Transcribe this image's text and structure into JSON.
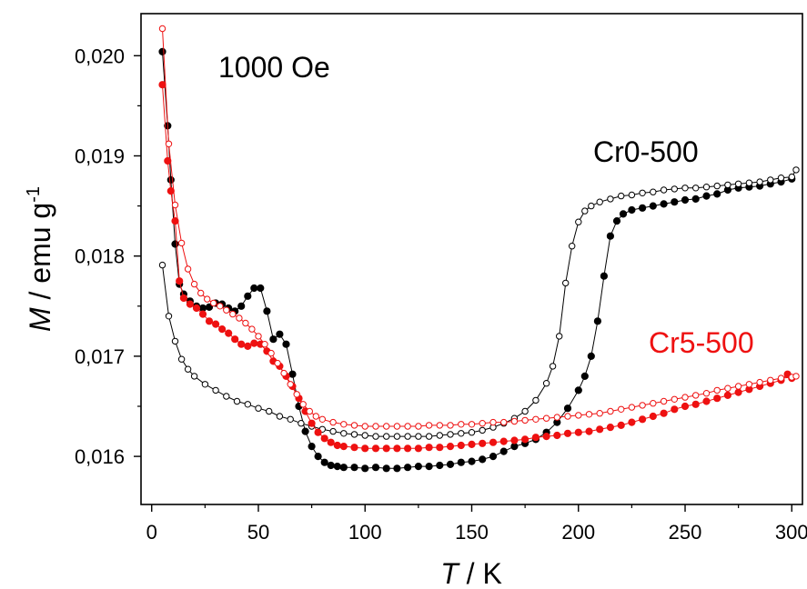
{
  "chart_data": {
    "type": "scatter",
    "title": "",
    "annotation": "1000 Oe",
    "xlabel": {
      "italic": "T",
      "rest": " / K"
    },
    "ylabel": {
      "italic": "M",
      "rest": " / emu g",
      "sup": "-1"
    },
    "xlim": [
      -5,
      305
    ],
    "ylim": [
      0.01552,
      0.02042
    ],
    "xticks": [
      0,
      50,
      100,
      150,
      200,
      250,
      300
    ],
    "xtick_labels": [
      "0",
      "50",
      "100",
      "150",
      "200",
      "250",
      "300"
    ],
    "yticks": [
      0.016,
      0.017,
      0.018,
      0.019,
      0.02
    ],
    "ytick_labels": [
      "0,016",
      "0,017",
      "0,018",
      "0,019",
      "0,020"
    ],
    "grid": false,
    "legend": "inline labels",
    "series_labels": [
      {
        "text": "Cr0-500",
        "color": "#000000"
      },
      {
        "text": "Cr5-500",
        "color": "#ee1111"
      }
    ],
    "series": [
      {
        "color": "#000000",
        "fill": "filled",
        "points": [
          [
            5,
            0.02004
          ],
          [
            7.5,
            0.0193
          ],
          [
            9,
            0.01876
          ],
          [
            11,
            0.01812
          ],
          [
            13,
            0.01772
          ],
          [
            15,
            0.01762
          ],
          [
            18,
            0.01755
          ],
          [
            21,
            0.0175
          ],
          [
            24,
            0.01748
          ],
          [
            27,
            0.01749
          ],
          [
            30,
            0.01753
          ],
          [
            33,
            0.01752
          ],
          [
            36,
            0.01748
          ],
          [
            39,
            0.01745
          ],
          [
            42,
            0.0175
          ],
          [
            45,
            0.0176
          ],
          [
            48,
            0.01768
          ],
          [
            51,
            0.01768
          ],
          [
            54,
            0.01745
          ],
          [
            57,
            0.01717
          ],
          [
            60,
            0.01722
          ],
          [
            63,
            0.01712
          ],
          [
            66,
            0.01682
          ],
          [
            69,
            0.0165
          ],
          [
            72,
            0.01625
          ],
          [
            75,
            0.0161
          ],
          [
            78,
            0.016
          ],
          [
            81,
            0.01594
          ],
          [
            84,
            0.01591
          ],
          [
            87,
            0.0159
          ],
          [
            90,
            0.01589
          ],
          [
            95,
            0.01589
          ],
          [
            100,
            0.01588
          ],
          [
            105,
            0.01589
          ],
          [
            110,
            0.01588
          ],
          [
            115,
            0.01588
          ],
          [
            120,
            0.01589
          ],
          [
            125,
            0.0159
          ],
          [
            130,
            0.0159
          ],
          [
            135,
            0.01591
          ],
          [
            140,
            0.01592
          ],
          [
            145,
            0.01594
          ],
          [
            150,
            0.01595
          ],
          [
            155,
            0.01597
          ],
          [
            160,
            0.016
          ],
          [
            165,
            0.01605
          ],
          [
            170,
            0.0161
          ],
          [
            175,
            0.01613
          ],
          [
            180,
            0.01617
          ],
          [
            185,
            0.01624
          ],
          [
            190,
            0.01634
          ],
          [
            195,
            0.01648
          ],
          [
            200,
            0.01666
          ],
          [
            203,
            0.0168
          ],
          [
            206,
            0.017
          ],
          [
            209,
            0.01735
          ],
          [
            212,
            0.0178
          ],
          [
            215,
            0.0182
          ],
          [
            218,
            0.01835
          ],
          [
            221,
            0.01842
          ],
          [
            225,
            0.01846
          ],
          [
            230,
            0.01848
          ],
          [
            235,
            0.0185
          ],
          [
            240,
            0.01852
          ],
          [
            245,
            0.01854
          ],
          [
            250,
            0.01856
          ],
          [
            255,
            0.01857
          ],
          [
            260,
            0.0186
          ],
          [
            265,
            0.01862
          ],
          [
            270,
            0.01866
          ],
          [
            275,
            0.01868
          ],
          [
            280,
            0.01869
          ],
          [
            285,
            0.0187
          ],
          [
            290,
            0.01872
          ],
          [
            295,
            0.01874
          ],
          [
            300,
            0.01877
          ]
        ]
      },
      {
        "color": "#000000",
        "fill": "open",
        "points": [
          [
            5,
            0.01791
          ],
          [
            8,
            0.0174
          ],
          [
            11,
            0.01715
          ],
          [
            14,
            0.01697
          ],
          [
            17,
            0.01687
          ],
          [
            20,
            0.0168
          ],
          [
            25,
            0.01672
          ],
          [
            30,
            0.01666
          ],
          [
            35,
            0.0166
          ],
          [
            40,
            0.01655
          ],
          [
            45,
            0.01652
          ],
          [
            50,
            0.01648
          ],
          [
            55,
            0.01645
          ],
          [
            60,
            0.0164
          ],
          [
            65,
            0.01637
          ],
          [
            70,
            0.01633
          ],
          [
            75,
            0.0163
          ],
          [
            80,
            0.01627
          ],
          [
            85,
            0.01625
          ],
          [
            90,
            0.01623
          ],
          [
            95,
            0.01622
          ],
          [
            100,
            0.01621
          ],
          [
            105,
            0.0162
          ],
          [
            110,
            0.0162
          ],
          [
            115,
            0.0162
          ],
          [
            120,
            0.0162
          ],
          [
            125,
            0.0162
          ],
          [
            130,
            0.0162
          ],
          [
            135,
            0.01621
          ],
          [
            140,
            0.01622
          ],
          [
            145,
            0.01623
          ],
          [
            150,
            0.01624
          ],
          [
            155,
            0.01626
          ],
          [
            160,
            0.01629
          ],
          [
            165,
            0.01633
          ],
          [
            170,
            0.01638
          ],
          [
            175,
            0.01645
          ],
          [
            180,
            0.01656
          ],
          [
            185,
            0.01673
          ],
          [
            188,
            0.0169
          ],
          [
            191,
            0.0172
          ],
          [
            194,
            0.01773
          ],
          [
            197,
            0.0181
          ],
          [
            200,
            0.01834
          ],
          [
            203,
            0.01845
          ],
          [
            206,
            0.0185
          ],
          [
            210,
            0.01854
          ],
          [
            215,
            0.01857
          ],
          [
            220,
            0.0186
          ],
          [
            225,
            0.01861
          ],
          [
            230,
            0.01863
          ],
          [
            235,
            0.01864
          ],
          [
            240,
            0.01866
          ],
          [
            245,
            0.01867
          ],
          [
            250,
            0.01868
          ],
          [
            255,
            0.01868
          ],
          [
            260,
            0.01869
          ],
          [
            265,
            0.0187
          ],
          [
            270,
            0.01871
          ],
          [
            275,
            0.01872
          ],
          [
            280,
            0.01873
          ],
          [
            285,
            0.01874
          ],
          [
            290,
            0.01876
          ],
          [
            295,
            0.01878
          ],
          [
            300,
            0.01879
          ],
          [
            302,
            0.01886
          ]
        ]
      },
      {
        "color": "#ee1111",
        "fill": "filled",
        "points": [
          [
            5,
            0.01971
          ],
          [
            7.5,
            0.01895
          ],
          [
            9,
            0.01865
          ],
          [
            11,
            0.01835
          ],
          [
            13,
            0.01775
          ],
          [
            15,
            0.01758
          ],
          [
            18,
            0.01752
          ],
          [
            21,
            0.01748
          ],
          [
            24,
            0.01742
          ],
          [
            27,
            0.01735
          ],
          [
            30,
            0.01732
          ],
          [
            33,
            0.01727
          ],
          [
            36,
            0.01723
          ],
          [
            39,
            0.01717
          ],
          [
            42,
            0.01712
          ],
          [
            45,
            0.0171
          ],
          [
            48,
            0.01713
          ],
          [
            51,
            0.01712
          ],
          [
            54,
            0.01705
          ],
          [
            57,
            0.01695
          ],
          [
            60,
            0.0169
          ],
          [
            63,
            0.0168
          ],
          [
            66,
            0.0167
          ],
          [
            69,
            0.01658
          ],
          [
            72,
            0.01645
          ],
          [
            75,
            0.01633
          ],
          [
            78,
            0.01624
          ],
          [
            81,
            0.01618
          ],
          [
            84,
            0.01614
          ],
          [
            87,
            0.01611
          ],
          [
            90,
            0.0161
          ],
          [
            95,
            0.01609
          ],
          [
            100,
            0.01608
          ],
          [
            105,
            0.01608
          ],
          [
            110,
            0.01608
          ],
          [
            115,
            0.01608
          ],
          [
            120,
            0.01608
          ],
          [
            125,
            0.01608
          ],
          [
            130,
            0.01609
          ],
          [
            135,
            0.01609
          ],
          [
            140,
            0.0161
          ],
          [
            145,
            0.01611
          ],
          [
            150,
            0.01612
          ],
          [
            155,
            0.01613
          ],
          [
            160,
            0.01614
          ],
          [
            165,
            0.01615
          ],
          [
            170,
            0.01616
          ],
          [
            175,
            0.01617
          ],
          [
            180,
            0.01619
          ],
          [
            185,
            0.0162
          ],
          [
            190,
            0.01621
          ],
          [
            195,
            0.01623
          ],
          [
            200,
            0.01624
          ],
          [
            205,
            0.01625
          ],
          [
            210,
            0.01627
          ],
          [
            215,
            0.01629
          ],
          [
            220,
            0.01631
          ],
          [
            225,
            0.01634
          ],
          [
            230,
            0.01637
          ],
          [
            235,
            0.0164
          ],
          [
            240,
            0.01643
          ],
          [
            245,
            0.01647
          ],
          [
            250,
            0.0165
          ],
          [
            255,
            0.01652
          ],
          [
            260,
            0.01655
          ],
          [
            265,
            0.01658
          ],
          [
            270,
            0.01661
          ],
          [
            275,
            0.01664
          ],
          [
            280,
            0.01667
          ],
          [
            285,
            0.0167
          ],
          [
            290,
            0.01673
          ],
          [
            295,
            0.01676
          ],
          [
            298,
            0.01682
          ],
          [
            300,
            0.01678
          ]
        ]
      },
      {
        "color": "#ee1111",
        "fill": "open",
        "points": [
          [
            5,
            0.02027
          ],
          [
            8,
            0.01912
          ],
          [
            11,
            0.01851
          ],
          [
            14,
            0.01813
          ],
          [
            17,
            0.01787
          ],
          [
            20,
            0.01772
          ],
          [
            23,
            0.01763
          ],
          [
            26,
            0.01757
          ],
          [
            29,
            0.01753
          ],
          [
            32,
            0.0175
          ],
          [
            35,
            0.01746
          ],
          [
            38,
            0.01742
          ],
          [
            41,
            0.01738
          ],
          [
            44,
            0.01733
          ],
          [
            47,
            0.01727
          ],
          [
            50,
            0.0172
          ],
          [
            53,
            0.01712
          ],
          [
            56,
            0.01703
          ],
          [
            59,
            0.01693
          ],
          [
            62,
            0.01683
          ],
          [
            65,
            0.01672
          ],
          [
            68,
            0.01662
          ],
          [
            71,
            0.01652
          ],
          [
            74,
            0.01645
          ],
          [
            77,
            0.0164
          ],
          [
            80,
            0.01637
          ],
          [
            85,
            0.01634
          ],
          [
            90,
            0.01632
          ],
          [
            95,
            0.01631
          ],
          [
            100,
            0.0163
          ],
          [
            105,
            0.0163
          ],
          [
            110,
            0.0163
          ],
          [
            115,
            0.0163
          ],
          [
            120,
            0.0163
          ],
          [
            125,
            0.0163
          ],
          [
            130,
            0.01631
          ],
          [
            135,
            0.01631
          ],
          [
            140,
            0.01631
          ],
          [
            145,
            0.01632
          ],
          [
            150,
            0.01632
          ],
          [
            155,
            0.01633
          ],
          [
            160,
            0.01634
          ],
          [
            165,
            0.01634
          ],
          [
            170,
            0.01635
          ],
          [
            175,
            0.01636
          ],
          [
            180,
            0.01637
          ],
          [
            185,
            0.01638
          ],
          [
            190,
            0.01639
          ],
          [
            195,
            0.0164
          ],
          [
            200,
            0.01641
          ],
          [
            205,
            0.01642
          ],
          [
            210,
            0.01643
          ],
          [
            215,
            0.01645
          ],
          [
            220,
            0.01647
          ],
          [
            225,
            0.01649
          ],
          [
            230,
            0.01651
          ],
          [
            235,
            0.01653
          ],
          [
            240,
            0.01655
          ],
          [
            245,
            0.01657
          ],
          [
            250,
            0.01659
          ],
          [
            255,
            0.01661
          ],
          [
            260,
            0.01663
          ],
          [
            265,
            0.01666
          ],
          [
            270,
            0.01668
          ],
          [
            275,
            0.0167
          ],
          [
            280,
            0.01672
          ],
          [
            285,
            0.01674
          ],
          [
            290,
            0.01676
          ],
          [
            295,
            0.01678
          ],
          [
            300,
            0.01679
          ],
          [
            302,
            0.0168
          ]
        ]
      }
    ]
  }
}
